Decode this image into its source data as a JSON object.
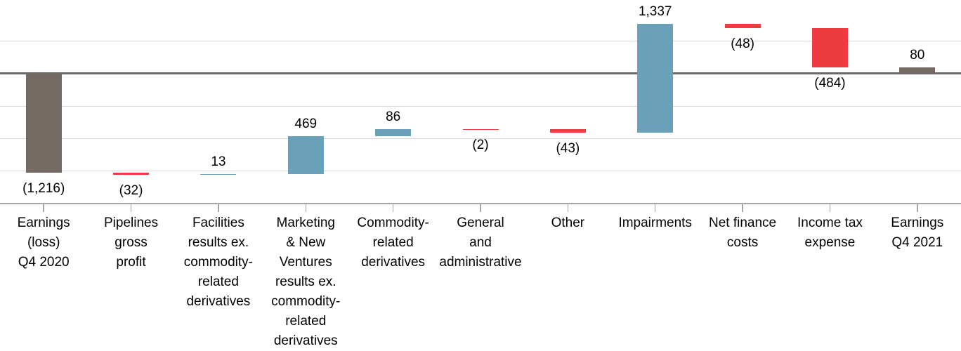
{
  "chart_data": {
    "type": "bar",
    "subtype": "waterfall",
    "title": "",
    "xlabel": "",
    "ylabel": "",
    "categories": [
      "Earnings (loss) Q4 2020",
      "Pipelines gross profit",
      "Facilities results ex. commodity-related derivatives",
      "Marketing & New Ventures results ex. commodity-related derivatives",
      "Commodity-related derivatives",
      "General and administrative",
      "Other",
      "Impairments",
      "Net finance costs",
      "Income tax expense",
      "Earnings Q4 2021"
    ],
    "category_label_lines": [
      [
        "Earnings",
        "(loss)",
        "Q4 2020"
      ],
      [
        "Pipelines",
        "gross",
        "profit"
      ],
      [
        "Facilities",
        "results ex.",
        "commodity-",
        "related",
        "derivatives"
      ],
      [
        "Marketing",
        "& New",
        "Ventures",
        "results ex.",
        "commodity-",
        "related",
        "derivatives"
      ],
      [
        "Commodity-",
        "related",
        "derivatives"
      ],
      [
        "General",
        "and",
        "administrative"
      ],
      [
        "Other"
      ],
      [
        "Impairments"
      ],
      [
        "Net finance",
        "costs"
      ],
      [
        "Income tax",
        "expense"
      ],
      [
        "Earnings",
        "Q4 2021"
      ]
    ],
    "values": [
      -1216,
      -32,
      13,
      469,
      86,
      -2,
      -43,
      1337,
      -48,
      -484,
      80
    ],
    "data_labels": [
      "(1,216)",
      "(32)",
      "13",
      "469",
      "86",
      "(2)",
      "(43)",
      "1,337",
      "(48)",
      "(484)",
      "80"
    ],
    "roles": [
      "total",
      "decrease",
      "increase",
      "increase",
      "increase",
      "decrease",
      "decrease",
      "increase",
      "decrease",
      "decrease",
      "total"
    ],
    "colors": {
      "total": "#756A63",
      "increase": "#6AA0B8",
      "decrease": "#EE3B3F",
      "gridline": "#D9D9D9",
      "zero_line": "#696969",
      "axis_line": "#A6A6A6",
      "label_text": "#000000"
    },
    "axis": {
      "y_min": -1600,
      "y_max": 800,
      "gridline_step": 400,
      "grid": true,
      "y_tick_labels_visible": false,
      "x_tick_marks": "category-centers",
      "legend": "none"
    }
  }
}
